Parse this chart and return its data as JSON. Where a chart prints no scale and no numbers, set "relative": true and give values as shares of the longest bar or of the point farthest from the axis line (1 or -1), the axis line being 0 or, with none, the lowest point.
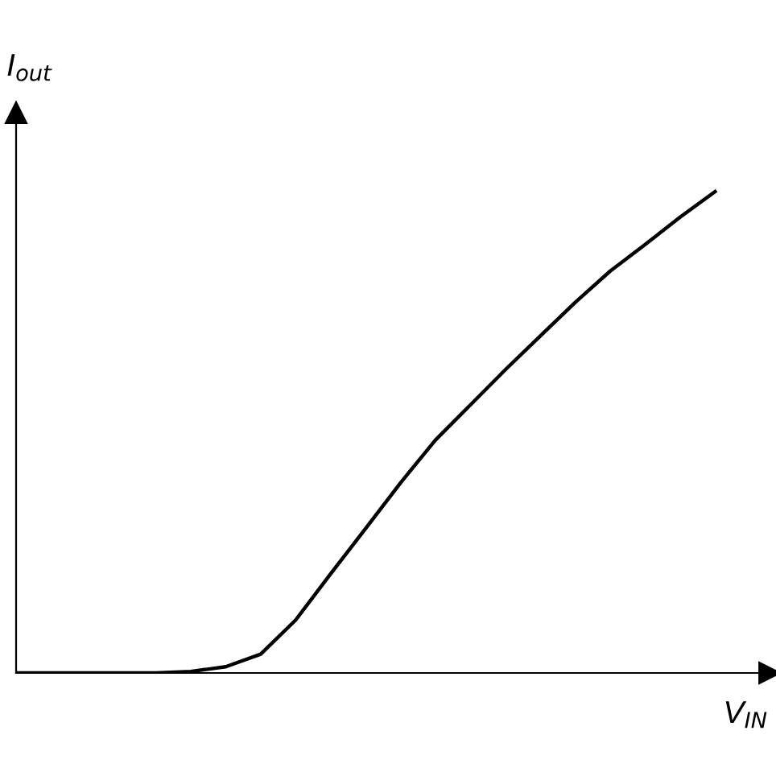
{
  "chart_data": {
    "type": "line",
    "relative": true,
    "xlabel": "V$_{IN}$",
    "ylabel": "I$_{out}$",
    "grid": false,
    "marker": "none",
    "line_style": "solid",
    "categories": [
      null,
      null,
      null,
      null,
      null,
      null,
      null,
      null,
      null,
      null,
      null,
      null,
      null,
      null,
      null,
      null,
      null,
      null,
      null,
      null,
      null
    ],
    "series": [
      {
        "color": "#000000",
        "values": [
          0,
          0,
          0,
          0,
          0,
          0.003,
          0.013,
          0.039,
          0.11,
          0.206,
          0.3,
          0.395,
          0.484,
          0.557,
          0.63,
          0.7,
          0.77,
          0.835,
          0.89,
          0.947,
          1
        ]
      }
    ]
  }
}
